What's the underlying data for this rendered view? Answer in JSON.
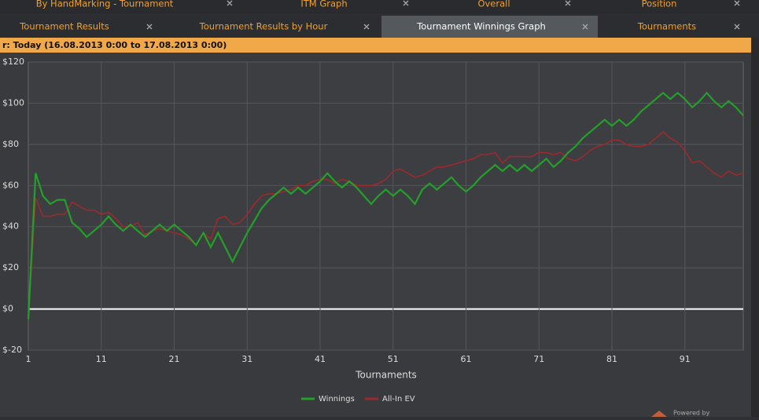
{
  "tabs_top": [
    "By HandMarking - Tournament",
    "ITM Graph",
    "Overall",
    "Position"
  ],
  "tabs": [
    "Tournament Results",
    "Tournament Results by Hour",
    "Tournament Winnings Graph",
    "Tournaments"
  ],
  "filter": "r: Today (16.08.2013 0:00 to 17.08.2013 0:00)",
  "powered_by": "Powered by",
  "chart_data": {
    "type": "line",
    "x_label": "Tournaments",
    "xlim": [
      1,
      99
    ],
    "xticks": [
      1,
      11,
      21,
      31,
      41,
      51,
      61,
      71,
      81,
      91
    ],
    "ylim": [
      -20,
      120
    ],
    "yticks": [
      {
        "value": -20,
        "label": "$-20"
      },
      {
        "value": 0,
        "label": "$0"
      },
      {
        "value": 20,
        "label": "$20"
      },
      {
        "value": 40,
        "label": "$40"
      },
      {
        "value": 60,
        "label": "$60"
      },
      {
        "value": 80,
        "label": "$80"
      },
      {
        "value": 100,
        "label": "$100"
      },
      {
        "value": 120,
        "label": "$120"
      }
    ],
    "grid": true,
    "x": [
      1,
      2,
      3,
      4,
      5,
      6,
      7,
      8,
      9,
      10,
      11,
      12,
      13,
      14,
      15,
      16,
      17,
      18,
      19,
      20,
      21,
      22,
      23,
      24,
      25,
      26,
      27,
      28,
      29,
      30,
      31,
      32,
      33,
      34,
      35,
      36,
      37,
      38,
      39,
      40,
      41,
      42,
      43,
      44,
      45,
      46,
      47,
      48,
      49,
      50,
      51,
      52,
      53,
      54,
      55,
      56,
      57,
      58,
      59,
      60,
      61,
      62,
      63,
      64,
      65,
      66,
      67,
      68,
      69,
      70,
      71,
      72,
      73,
      74,
      75,
      76,
      77,
      78,
      79,
      80,
      81,
      82,
      83,
      84,
      85,
      86,
      87,
      88,
      89,
      90,
      91,
      92,
      93,
      94,
      95,
      96,
      97,
      98,
      99
    ],
    "series": [
      {
        "name": "Winnings",
        "color": "#22a02a",
        "values": [
          -5,
          66,
          55,
          51,
          53,
          53,
          42,
          39,
          35,
          38,
          41,
          45,
          41,
          38,
          41,
          38,
          35,
          38,
          41,
          38,
          41,
          38,
          35,
          31,
          37,
          30,
          37,
          30,
          23,
          30,
          37,
          43,
          49,
          53,
          56,
          59,
          56,
          59,
          56,
          59,
          62,
          66,
          62,
          59,
          62,
          59,
          55,
          51,
          55,
          58,
          55,
          58,
          55,
          51,
          58,
          61,
          58,
          61,
          64,
          60,
          57,
          60,
          64,
          67,
          70,
          67,
          70,
          67,
          70,
          67,
          70,
          73,
          69,
          72,
          76,
          79,
          83,
          86,
          89,
          92,
          89,
          92,
          89,
          92,
          96,
          99,
          102,
          105,
          102,
          105,
          102,
          98,
          101,
          105,
          101,
          98,
          101,
          98,
          94
        ]
      },
      {
        "name": "All-In EV",
        "color": "#9a2a2e",
        "values": [
          -5,
          54,
          45,
          45,
          46,
          46,
          52,
          50,
          48,
          48,
          46,
          47,
          44,
          40,
          40,
          42,
          36,
          38,
          39,
          38,
          37,
          36,
          34,
          31,
          37,
          34,
          44,
          45,
          41,
          42,
          46,
          51,
          55,
          56,
          56,
          57,
          58,
          60,
          60,
          62,
          63,
          63,
          61,
          63,
          62,
          60,
          60,
          60,
          61,
          63,
          67,
          68,
          66,
          64,
          65,
          67,
          69,
          69,
          70,
          71,
          72,
          73,
          75,
          75,
          76,
          71,
          74,
          74,
          74,
          74,
          76,
          76,
          75,
          76,
          73,
          72,
          74,
          77,
          79,
          80,
          82,
          82,
          80,
          79,
          79,
          80,
          83,
          86,
          83,
          81,
          77,
          71,
          72,
          69,
          66,
          64,
          67,
          65,
          66
        ]
      }
    ]
  }
}
